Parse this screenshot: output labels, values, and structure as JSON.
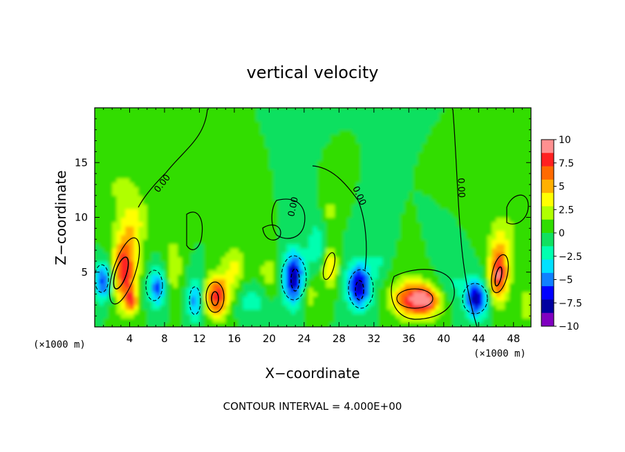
{
  "chart_data": {
    "type": "heatmap",
    "title": "vertical velocity",
    "xlabel": "X−coordinate",
    "ylabel": "Z−coordinate",
    "x_unit_left": "(×1000 m)",
    "x_unit_right": "(×1000 m)",
    "xlim": [
      0,
      50
    ],
    "ylim": [
      0,
      20
    ],
    "xticks": [
      4,
      8,
      12,
      16,
      20,
      24,
      28,
      32,
      36,
      40,
      44,
      48
    ],
    "yticks": [
      5,
      10,
      15
    ],
    "colorbar": {
      "ticks": [
        "10",
        "7.5",
        "5",
        "2.5",
        "0",
        "−2.5",
        "−5",
        "−7.5",
        "−10"
      ],
      "range": [
        -10,
        10
      ],
      "colors": [
        "#ff9090",
        "#ff2020",
        "#ff6a00",
        "#ffb000",
        "#ffff00",
        "#b0ff00",
        "#30dd00",
        "#10e060",
        "#00ffb0",
        "#00e0ff",
        "#1080ff",
        "#0000ff",
        "#0000a0",
        "#8000c0"
      ]
    },
    "contour_label": "0.00",
    "contour_interval_text": "CONTOUR INTERVAL = 4.000E+00",
    "features": [
      {
        "x": 1.0,
        "z": 4.2,
        "w": -6.5,
        "sx": 0.8,
        "sz": 1.2
      },
      {
        "x": 3.4,
        "z": 5.2,
        "w": 8.5,
        "sx": 1.0,
        "sz": 2.2
      },
      {
        "x": 4.2,
        "z": 2.3,
        "w": 5.5,
        "sx": 0.5,
        "sz": 0.8
      },
      {
        "x": 4.5,
        "z": 9.5,
        "w": 3.0,
        "sx": 1.2,
        "sz": 1.6
      },
      {
        "x": 3.0,
        "z": 13.0,
        "w": 1.5,
        "sx": 2.0,
        "sz": 2.0
      },
      {
        "x": 7.2,
        "z": 3.6,
        "w": -6.0,
        "sx": 0.7,
        "sz": 1.2
      },
      {
        "x": 9.0,
        "z": 5.5,
        "w": 2.5,
        "sx": 0.8,
        "sz": 2.0
      },
      {
        "x": 11.5,
        "z": 2.5,
        "w": -5.0,
        "sx": 0.6,
        "sz": 1.4
      },
      {
        "x": 14.0,
        "z": 2.8,
        "w": 8.0,
        "sx": 1.0,
        "sz": 1.3
      },
      {
        "x": 16.0,
        "z": 5.5,
        "w": 3.0,
        "sx": 1.0,
        "sz": 1.5
      },
      {
        "x": 18.0,
        "z": 2.5,
        "w": -2.5,
        "sx": 1.2,
        "sz": 1.0
      },
      {
        "x": 20.0,
        "z": 5.0,
        "w": 2.0,
        "sx": 1.0,
        "sz": 1.5
      },
      {
        "x": 22.8,
        "z": 4.5,
        "w": -8.5,
        "sx": 0.9,
        "sz": 1.7
      },
      {
        "x": 24.5,
        "z": 3.0,
        "w": 2.5,
        "sx": 0.8,
        "sz": 1.2
      },
      {
        "x": 25.5,
        "z": 7.5,
        "w": -2.5,
        "sx": 0.8,
        "sz": 1.5
      },
      {
        "x": 27.0,
        "z": 5.5,
        "w": 4.5,
        "sx": 0.6,
        "sz": 1.4
      },
      {
        "x": 27.0,
        "z": 10.5,
        "w": 2.0,
        "sx": 0.6,
        "sz": 1.0
      },
      {
        "x": 30.3,
        "z": 3.8,
        "w": -8.0,
        "sx": 1.0,
        "sz": 1.5
      },
      {
        "x": 32.5,
        "z": 6.0,
        "w": -1.5,
        "sx": 0.6,
        "sz": 1.0
      },
      {
        "x": 36.0,
        "z": 2.6,
        "w": 6.5,
        "sx": 1.5,
        "sz": 1.2
      },
      {
        "x": 38.0,
        "z": 2.4,
        "w": 7.0,
        "sx": 1.2,
        "sz": 1.0
      },
      {
        "x": 41.0,
        "z": 4.0,
        "w": -1.5,
        "sx": 1.2,
        "sz": 1.2
      },
      {
        "x": 43.7,
        "z": 2.6,
        "w": -8.0,
        "sx": 0.9,
        "sz": 1.2
      },
      {
        "x": 46.3,
        "z": 4.8,
        "w": 8.5,
        "sx": 0.8,
        "sz": 1.7
      },
      {
        "x": 46.5,
        "z": 8.0,
        "w": 2.5,
        "sx": 1.0,
        "sz": 1.5
      },
      {
        "x": 49.5,
        "z": 2.0,
        "w": 3.0,
        "sx": 0.5,
        "sz": 1.0
      },
      {
        "x": 48.5,
        "z": 10.5,
        "w": 1.0,
        "sx": 1.5,
        "sz": 1.5
      }
    ]
  }
}
